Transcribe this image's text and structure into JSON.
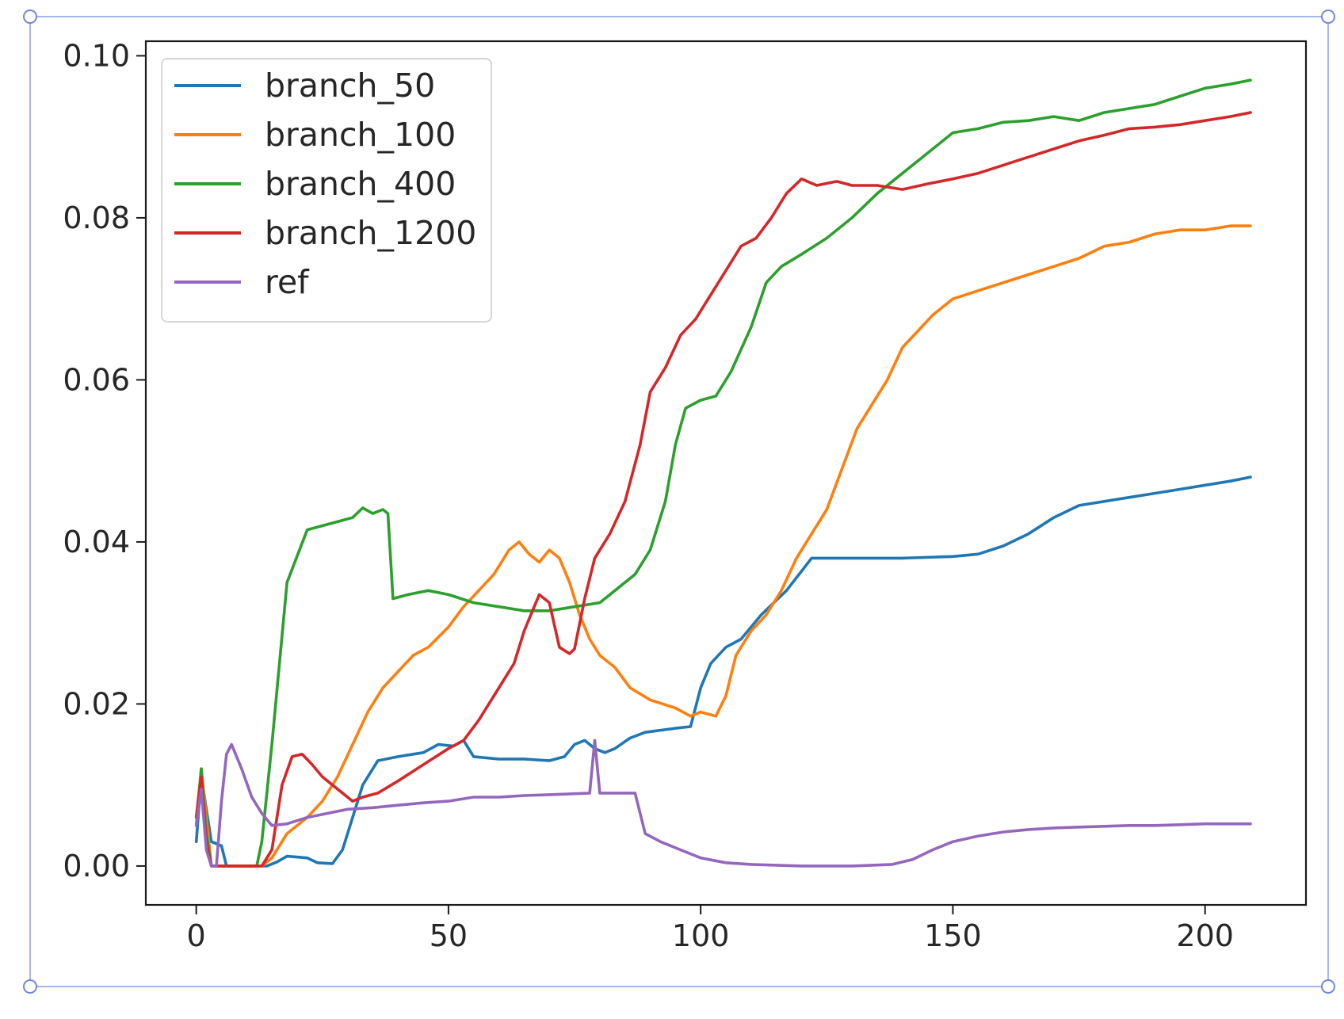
{
  "chart_data": {
    "type": "line",
    "title": "",
    "xlabel": "",
    "ylabel": "",
    "xlim": [
      -10,
      220
    ],
    "ylim": [
      -0.0048,
      0.1018
    ],
    "x_ticks": [
      0,
      50,
      100,
      150,
      200
    ],
    "x_tick_labels": [
      "0",
      "50",
      "100",
      "150",
      "200"
    ],
    "y_ticks": [
      0,
      0.02,
      0.04,
      0.06,
      0.08,
      0.1
    ],
    "y_tick_labels": [
      "0.00",
      "0.02",
      "0.04",
      "0.06",
      "0.08",
      "0.10"
    ],
    "grid": false,
    "legend_position": "top-left",
    "series": [
      {
        "name": "branch_50",
        "color": "#1f77b4",
        "points": [
          [
            0,
            0.003
          ],
          [
            1,
            0.011
          ],
          [
            2,
            0.007
          ],
          [
            3,
            0.003
          ],
          [
            5,
            0.0025
          ],
          [
            6,
            0
          ],
          [
            14,
            0
          ],
          [
            16,
            0.0005
          ],
          [
            18,
            0.0012
          ],
          [
            22,
            0.001
          ],
          [
            24,
            0.0004
          ],
          [
            27,
            0.0003
          ],
          [
            29,
            0.002
          ],
          [
            31,
            0.006
          ],
          [
            33,
            0.01
          ],
          [
            36,
            0.013
          ],
          [
            40,
            0.0135
          ],
          [
            45,
            0.014
          ],
          [
            48,
            0.015
          ],
          [
            51,
            0.0148
          ],
          [
            53,
            0.0155
          ],
          [
            55,
            0.0135
          ],
          [
            60,
            0.0132
          ],
          [
            65,
            0.0132
          ],
          [
            70,
            0.013
          ],
          [
            73,
            0.0135
          ],
          [
            75,
            0.015
          ],
          [
            77,
            0.0155
          ],
          [
            79,
            0.0145
          ],
          [
            81,
            0.014
          ],
          [
            83,
            0.0145
          ],
          [
            86,
            0.0158
          ],
          [
            89,
            0.0165
          ],
          [
            95,
            0.017
          ],
          [
            98,
            0.0172
          ],
          [
            100,
            0.022
          ],
          [
            102,
            0.025
          ],
          [
            105,
            0.027
          ],
          [
            108,
            0.028
          ],
          [
            112,
            0.031
          ],
          [
            117,
            0.034
          ],
          [
            122,
            0.038
          ],
          [
            130,
            0.038
          ],
          [
            140,
            0.038
          ],
          [
            150,
            0.0382
          ],
          [
            155,
            0.0385
          ],
          [
            160,
            0.0395
          ],
          [
            165,
            0.041
          ],
          [
            170,
            0.043
          ],
          [
            175,
            0.0445
          ],
          [
            180,
            0.045
          ],
          [
            185,
            0.0455
          ],
          [
            190,
            0.046
          ],
          [
            195,
            0.0465
          ],
          [
            200,
            0.047
          ],
          [
            205,
            0.0475
          ],
          [
            209,
            0.048
          ]
        ]
      },
      {
        "name": "branch_100",
        "color": "#ff7f0e",
        "points": [
          [
            0,
            0.006
          ],
          [
            1,
            0.012
          ],
          [
            2,
            0.006
          ],
          [
            3,
            0
          ],
          [
            13,
            0
          ],
          [
            15,
            0.001
          ],
          [
            18,
            0.004
          ],
          [
            22,
            0.006
          ],
          [
            25,
            0.008
          ],
          [
            28,
            0.011
          ],
          [
            31,
            0.015
          ],
          [
            34,
            0.019
          ],
          [
            37,
            0.022
          ],
          [
            40,
            0.024
          ],
          [
            43,
            0.026
          ],
          [
            46,
            0.027
          ],
          [
            50,
            0.0295
          ],
          [
            53,
            0.032
          ],
          [
            56,
            0.034
          ],
          [
            59,
            0.036
          ],
          [
            62,
            0.039
          ],
          [
            64,
            0.04
          ],
          [
            66,
            0.0385
          ],
          [
            68,
            0.0375
          ],
          [
            70,
            0.039
          ],
          [
            72,
            0.038
          ],
          [
            74,
            0.035
          ],
          [
            76,
            0.031
          ],
          [
            78,
            0.028
          ],
          [
            80,
            0.026
          ],
          [
            83,
            0.0245
          ],
          [
            86,
            0.022
          ],
          [
            90,
            0.0205
          ],
          [
            95,
            0.0195
          ],
          [
            98,
            0.0185
          ],
          [
            100,
            0.019
          ],
          [
            103,
            0.0185
          ],
          [
            105,
            0.021
          ],
          [
            107,
            0.026
          ],
          [
            110,
            0.029
          ],
          [
            113,
            0.031
          ],
          [
            116,
            0.034
          ],
          [
            119,
            0.038
          ],
          [
            122,
            0.041
          ],
          [
            125,
            0.044
          ],
          [
            128,
            0.049
          ],
          [
            131,
            0.054
          ],
          [
            134,
            0.057
          ],
          [
            137,
            0.06
          ],
          [
            140,
            0.064
          ],
          [
            143,
            0.066
          ],
          [
            146,
            0.068
          ],
          [
            150,
            0.07
          ],
          [
            155,
            0.071
          ],
          [
            160,
            0.072
          ],
          [
            165,
            0.073
          ],
          [
            170,
            0.074
          ],
          [
            175,
            0.075
          ],
          [
            180,
            0.0765
          ],
          [
            185,
            0.077
          ],
          [
            190,
            0.078
          ],
          [
            195,
            0.0785
          ],
          [
            200,
            0.0785
          ],
          [
            205,
            0.079
          ],
          [
            209,
            0.079
          ]
        ]
      },
      {
        "name": "branch_400",
        "color": "#2ca02c",
        "points": [
          [
            0,
            0.005
          ],
          [
            1,
            0.012
          ],
          [
            2,
            0.004
          ],
          [
            3,
            0
          ],
          [
            12,
            0
          ],
          [
            13,
            0.003
          ],
          [
            15,
            0.015
          ],
          [
            18,
            0.035
          ],
          [
            22,
            0.0415
          ],
          [
            25,
            0.042
          ],
          [
            28,
            0.0425
          ],
          [
            31,
            0.043
          ],
          [
            33,
            0.0442
          ],
          [
            35,
            0.0435
          ],
          [
            37,
            0.044
          ],
          [
            38,
            0.0435
          ],
          [
            39,
            0.033
          ],
          [
            42,
            0.0335
          ],
          [
            46,
            0.034
          ],
          [
            50,
            0.0335
          ],
          [
            55,
            0.0325
          ],
          [
            60,
            0.032
          ],
          [
            65,
            0.0315
          ],
          [
            70,
            0.0315
          ],
          [
            75,
            0.032
          ],
          [
            80,
            0.0325
          ],
          [
            83,
            0.034
          ],
          [
            87,
            0.036
          ],
          [
            90,
            0.039
          ],
          [
            93,
            0.045
          ],
          [
            95,
            0.052
          ],
          [
            97,
            0.0565
          ],
          [
            100,
            0.0575
          ],
          [
            103,
            0.058
          ],
          [
            106,
            0.061
          ],
          [
            110,
            0.0665
          ],
          [
            113,
            0.072
          ],
          [
            116,
            0.074
          ],
          [
            120,
            0.0755
          ],
          [
            125,
            0.0775
          ],
          [
            130,
            0.08
          ],
          [
            135,
            0.083
          ],
          [
            140,
            0.0855
          ],
          [
            145,
            0.088
          ],
          [
            150,
            0.0905
          ],
          [
            155,
            0.091
          ],
          [
            160,
            0.0918
          ],
          [
            165,
            0.092
          ],
          [
            170,
            0.0925
          ],
          [
            175,
            0.092
          ],
          [
            180,
            0.093
          ],
          [
            185,
            0.0935
          ],
          [
            190,
            0.094
          ],
          [
            195,
            0.095
          ],
          [
            200,
            0.096
          ],
          [
            205,
            0.0965
          ],
          [
            209,
            0.097
          ]
        ]
      },
      {
        "name": "branch_1200",
        "color": "#d62728",
        "points": [
          [
            0,
            0.006
          ],
          [
            1,
            0.011
          ],
          [
            2,
            0.003
          ],
          [
            3,
            0
          ],
          [
            13,
            0
          ],
          [
            15,
            0.002
          ],
          [
            17,
            0.01
          ],
          [
            19,
            0.0135
          ],
          [
            21,
            0.0138
          ],
          [
            23,
            0.0125
          ],
          [
            25,
            0.011
          ],
          [
            28,
            0.0095
          ],
          [
            31,
            0.008
          ],
          [
            33,
            0.0085
          ],
          [
            36,
            0.009
          ],
          [
            40,
            0.0105
          ],
          [
            45,
            0.0125
          ],
          [
            50,
            0.0145
          ],
          [
            53,
            0.0155
          ],
          [
            56,
            0.018
          ],
          [
            60,
            0.022
          ],
          [
            63,
            0.025
          ],
          [
            65,
            0.029
          ],
          [
            67,
            0.032
          ],
          [
            68,
            0.0335
          ],
          [
            70,
            0.0325
          ],
          [
            72,
            0.027
          ],
          [
            74,
            0.0262
          ],
          [
            75,
            0.0268
          ],
          [
            77,
            0.033
          ],
          [
            79,
            0.038
          ],
          [
            82,
            0.041
          ],
          [
            85,
            0.045
          ],
          [
            88,
            0.052
          ],
          [
            90,
            0.0585
          ],
          [
            93,
            0.0615
          ],
          [
            96,
            0.0655
          ],
          [
            99,
            0.0675
          ],
          [
            102,
            0.0705
          ],
          [
            105,
            0.0735
          ],
          [
            108,
            0.0765
          ],
          [
            111,
            0.0775
          ],
          [
            114,
            0.08
          ],
          [
            117,
            0.083
          ],
          [
            120,
            0.0848
          ],
          [
            123,
            0.084
          ],
          [
            127,
            0.0845
          ],
          [
            130,
            0.084
          ],
          [
            135,
            0.084
          ],
          [
            140,
            0.0835
          ],
          [
            145,
            0.0842
          ],
          [
            150,
            0.0848
          ],
          [
            155,
            0.0855
          ],
          [
            160,
            0.0865
          ],
          [
            165,
            0.0875
          ],
          [
            170,
            0.0885
          ],
          [
            175,
            0.0895
          ],
          [
            180,
            0.0902
          ],
          [
            185,
            0.091
          ],
          [
            190,
            0.0912
          ],
          [
            195,
            0.0915
          ],
          [
            200,
            0.092
          ],
          [
            205,
            0.0925
          ],
          [
            209,
            0.093
          ]
        ]
      },
      {
        "name": "ref",
        "color": "#9467bd",
        "points": [
          [
            0,
            0.005
          ],
          [
            1,
            0.0095
          ],
          [
            2,
            0.002
          ],
          [
            3,
            0
          ],
          [
            4,
            0
          ],
          [
            5,
            0.008
          ],
          [
            6,
            0.0138
          ],
          [
            7,
            0.015
          ],
          [
            9,
            0.012
          ],
          [
            11,
            0.0085
          ],
          [
            13,
            0.0065
          ],
          [
            15,
            0.005
          ],
          [
            18,
            0.0052
          ],
          [
            22,
            0.006
          ],
          [
            26,
            0.0065
          ],
          [
            30,
            0.007
          ],
          [
            35,
            0.0072
          ],
          [
            40,
            0.0075
          ],
          [
            45,
            0.0078
          ],
          [
            50,
            0.008
          ],
          [
            55,
            0.0085
          ],
          [
            60,
            0.0085
          ],
          [
            65,
            0.0087
          ],
          [
            70,
            0.0088
          ],
          [
            78,
            0.009
          ],
          [
            79,
            0.0155
          ],
          [
            80,
            0.009
          ],
          [
            87,
            0.009
          ],
          [
            89,
            0.004
          ],
          [
            92,
            0.003
          ],
          [
            96,
            0.002
          ],
          [
            100,
            0.001
          ],
          [
            105,
            0.0004
          ],
          [
            110,
            0.0002
          ],
          [
            120,
            0
          ],
          [
            130,
            0
          ],
          [
            138,
            0.0002
          ],
          [
            142,
            0.0008
          ],
          [
            146,
            0.002
          ],
          [
            150,
            0.003
          ],
          [
            155,
            0.0037
          ],
          [
            160,
            0.0042
          ],
          [
            165,
            0.0045
          ],
          [
            170,
            0.0047
          ],
          [
            175,
            0.0048
          ],
          [
            180,
            0.0049
          ],
          [
            185,
            0.005
          ],
          [
            190,
            0.005
          ],
          [
            195,
            0.0051
          ],
          [
            200,
            0.0052
          ],
          [
            205,
            0.0052
          ],
          [
            209,
            0.0052
          ]
        ]
      }
    ]
  }
}
